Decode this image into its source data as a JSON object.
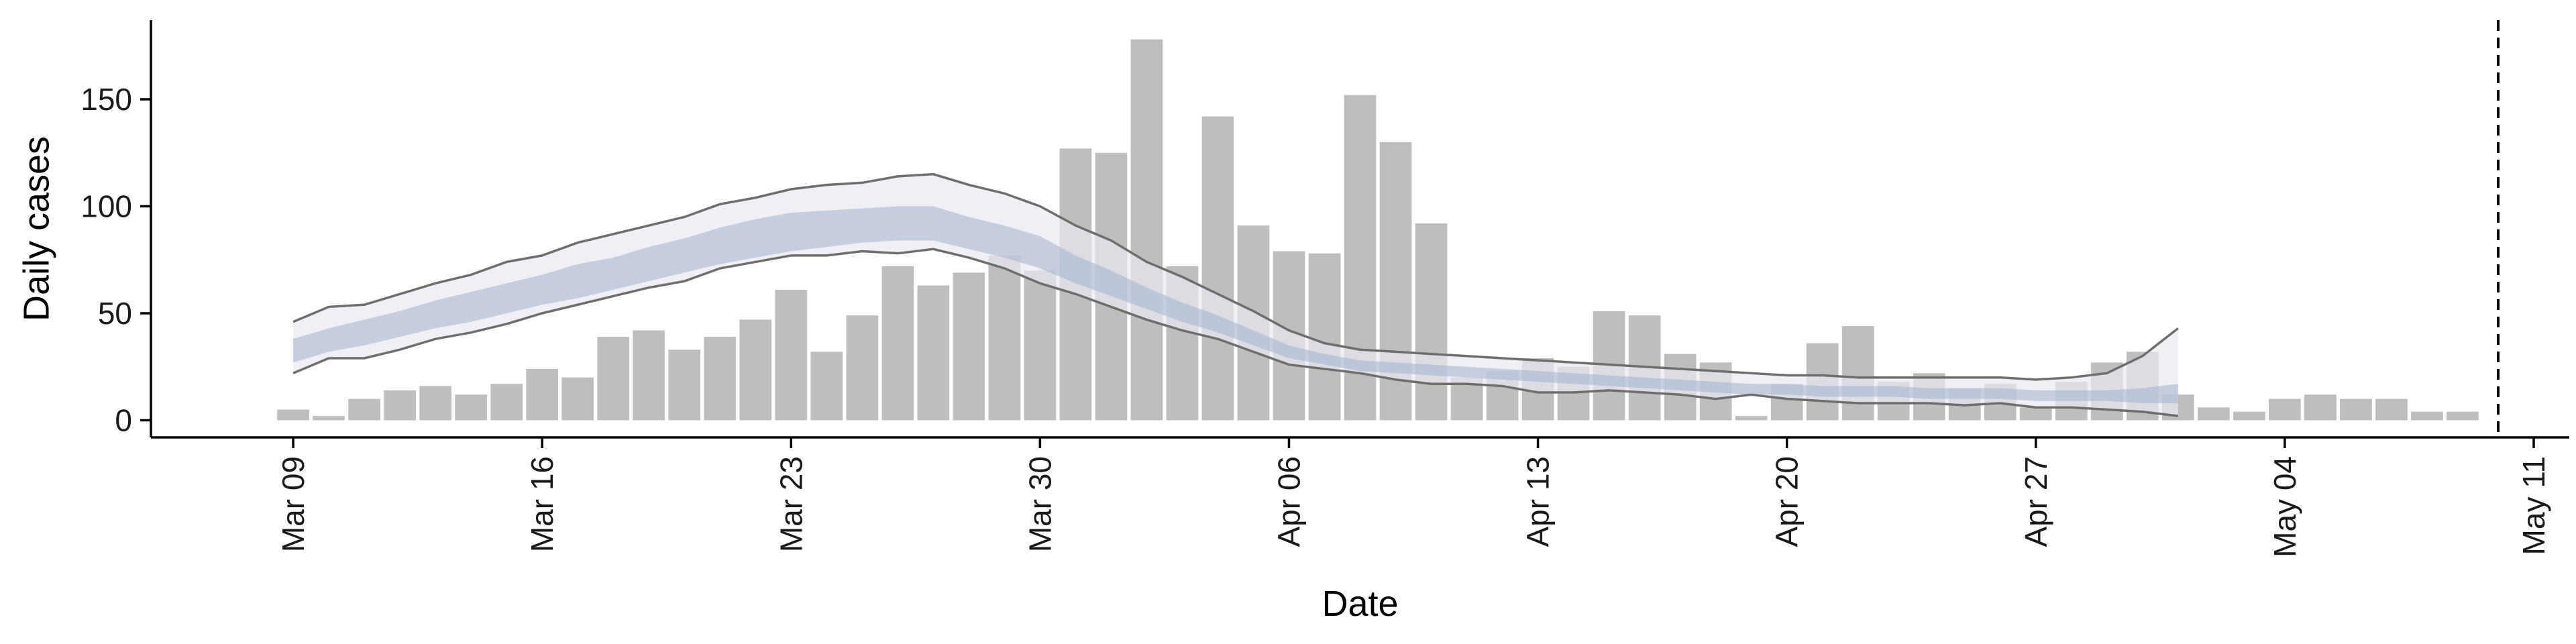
{
  "chart_data": {
    "type": "bar",
    "xlabel": "Date",
    "ylabel": "Daily cases",
    "xlim": [
      "2020-03-05",
      "2020-05-12"
    ],
    "ylim": [
      -8,
      187
    ],
    "x_tick_labels": [
      {
        "date": "2020-03-09",
        "label": "Mar 09"
      },
      {
        "date": "2020-03-16",
        "label": "Mar 16"
      },
      {
        "date": "2020-03-23",
        "label": "Mar 23"
      },
      {
        "date": "2020-03-30",
        "label": "Mar 30"
      },
      {
        "date": "2020-04-06",
        "label": "Apr 06"
      },
      {
        "date": "2020-04-13",
        "label": "Apr 13"
      },
      {
        "date": "2020-04-20",
        "label": "Apr 20"
      },
      {
        "date": "2020-04-27",
        "label": "Apr 27"
      },
      {
        "date": "2020-05-04",
        "label": "May 04"
      },
      {
        "date": "2020-05-11",
        "label": "May 11"
      }
    ],
    "y_ticks": [
      0,
      50,
      100,
      150
    ],
    "vertical_line_date": "2020-05-10",
    "colors": {
      "bars": "#bebebe",
      "band_outer": "#e8eaf2",
      "band_inner": "#a9b5d0",
      "bound_lines": "#6e6e6e",
      "ref_line": "#000000",
      "axis": "#000000"
    },
    "daily_cases": {
      "start_date": "2020-03-09",
      "values": [
        5,
        2,
        10,
        14,
        16,
        12,
        17,
        24,
        20,
        39,
        42,
        33,
        39,
        47,
        61,
        32,
        49,
        72,
        63,
        69,
        77,
        70,
        127,
        125,
        178,
        72,
        142,
        91,
        79,
        78,
        152,
        130,
        92,
        20,
        23,
        29,
        25,
        51,
        49,
        31,
        27,
        2,
        17,
        36,
        44,
        18,
        22,
        15,
        17,
        6,
        18,
        27,
        32,
        12,
        6,
        4,
        10,
        12,
        10,
        10,
        4,
        4
      ]
    },
    "estimate": {
      "start_date": "2020-03-09",
      "outer_upper": [
        46,
        53,
        54,
        59,
        64,
        68,
        74,
        77,
        83,
        87,
        91,
        95,
        101,
        104,
        108,
        110,
        111,
        114,
        115,
        110,
        106,
        100,
        91,
        84,
        74,
        67,
        59,
        51,
        42,
        36,
        33,
        32,
        31,
        30,
        29,
        28,
        27,
        26,
        25,
        24,
        23,
        22,
        21,
        21,
        20,
        20,
        20,
        20,
        20,
        19,
        20,
        22,
        30,
        43
      ],
      "inner_upper": [
        38,
        43,
        47,
        51,
        56,
        60,
        64,
        68,
        73,
        76,
        81,
        85,
        90,
        94,
        97,
        98,
        99,
        100,
        100,
        95,
        91,
        86,
        77,
        70,
        62,
        55,
        49,
        42,
        35,
        31,
        28,
        27,
        26,
        25,
        24,
        23,
        22,
        21,
        20,
        19,
        18,
        17,
        17,
        16,
        16,
        16,
        15,
        15,
        15,
        14,
        14,
        14,
        15,
        17
      ],
      "inner_lower": [
        27,
        32,
        35,
        39,
        43,
        46,
        50,
        54,
        57,
        61,
        65,
        69,
        73,
        76,
        79,
        81,
        83,
        84,
        84,
        80,
        76,
        71,
        64,
        58,
        52,
        46,
        41,
        35,
        29,
        26,
        23,
        22,
        21,
        20,
        19,
        18,
        17,
        16,
        15,
        14,
        13,
        12,
        12,
        11,
        11,
        11,
        10,
        10,
        10,
        9,
        9,
        9,
        8,
        8
      ],
      "outer_lower": [
        22,
        29,
        29,
        33,
        38,
        41,
        45,
        50,
        54,
        58,
        62,
        65,
        71,
        74,
        77,
        77,
        79,
        78,
        80,
        76,
        71,
        64,
        59,
        53,
        47,
        42,
        38,
        32,
        26,
        24,
        22,
        19,
        17,
        17,
        16,
        13,
        13,
        14,
        13,
        12,
        10,
        12,
        10,
        9,
        8,
        8,
        8,
        7,
        8,
        6,
        6,
        5,
        4,
        2
      ]
    }
  }
}
